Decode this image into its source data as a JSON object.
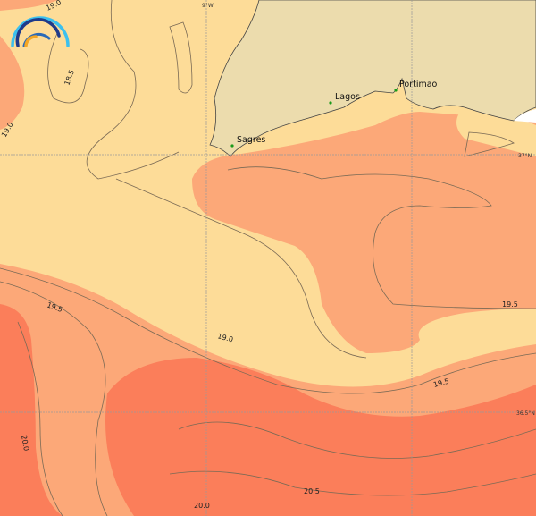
{
  "map": {
    "colors": {
      "sst_low": "#fddc98",
      "sst_mid": "#fca878",
      "sst_high": "#fb7e5a",
      "land": "#ecdcad",
      "no_data": "#ffffff",
      "town_marker": "#1a9a1a"
    },
    "towns": [
      {
        "name": "Sagres"
      },
      {
        "name": "Lagos"
      },
      {
        "name": "Portimao"
      }
    ],
    "graticule": {
      "lon_label": "9°W",
      "lat_labels": [
        "37°N",
        "36.5°N"
      ]
    },
    "contour_labels": [
      "19.0",
      "18.5",
      "19.0",
      "19.5",
      "19.0",
      "19.5",
      "19.5",
      "20.0",
      "20.0",
      "20.5"
    ],
    "logo": "rainbow-arc-logo"
  }
}
